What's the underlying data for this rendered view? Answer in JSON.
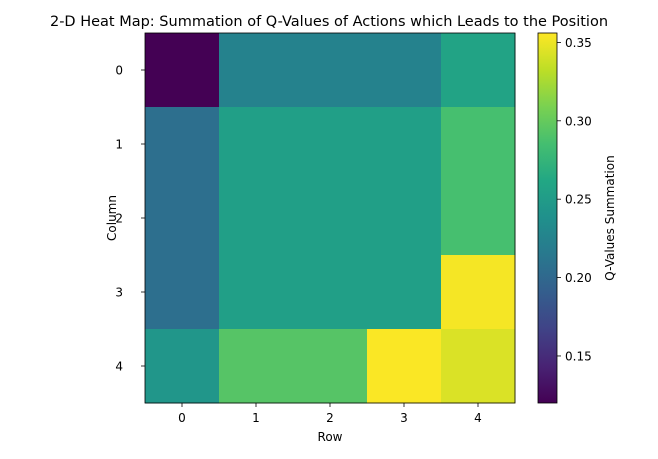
{
  "chart_data": {
    "type": "heatmap",
    "title": "2-D Heat Map: Summation of Q-Values of Actions which Leads to the Position",
    "xlabel": "Row",
    "ylabel": "Column",
    "x_ticks": [
      "0",
      "1",
      "2",
      "3",
      "4"
    ],
    "y_ticks": [
      "0",
      "1",
      "2",
      "3",
      "4"
    ],
    "colormap": "viridis",
    "colorbar": {
      "label": "Q-Values Summation",
      "vmin": 0.12,
      "vmax": 0.356,
      "ticks": [
        0.15,
        0.2,
        0.25,
        0.3,
        0.35
      ],
      "tick_labels": [
        "0.15",
        "0.20",
        "0.25",
        "0.30",
        "0.35"
      ]
    },
    "grid": false,
    "values": [
      [
        0.12,
        0.224,
        0.224,
        0.224,
        0.258
      ],
      [
        0.206,
        0.253,
        0.253,
        0.253,
        0.286
      ],
      [
        0.206,
        0.253,
        0.253,
        0.253,
        0.286
      ],
      [
        0.206,
        0.253,
        0.253,
        0.253,
        0.353
      ],
      [
        0.244,
        0.293,
        0.293,
        0.355,
        0.343
      ]
    ]
  }
}
